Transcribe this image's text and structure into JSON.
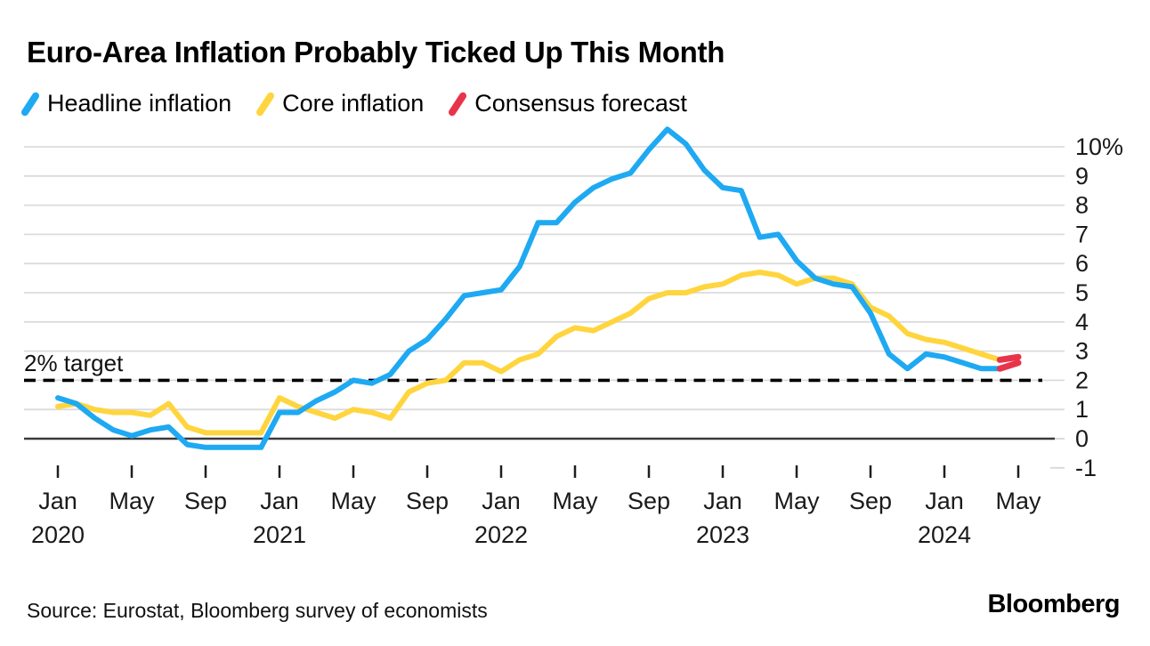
{
  "title": "Euro-Area Inflation Probably Ticked Up This Month",
  "legend": [
    {
      "label": "Headline inflation",
      "color": "#1EA9F2"
    },
    {
      "label": "Core inflation",
      "color": "#FFD53F"
    },
    {
      "label": "Consensus forecast",
      "color": "#E9334B"
    }
  ],
  "annotation": {
    "label": "2% target",
    "value": 2
  },
  "source": "Source: Eurostat, Bloomberg survey of economists",
  "brand": "Bloomberg",
  "colors": {
    "headline": "#1EA9F2",
    "core": "#FFD53F",
    "forecast": "#E9334B",
    "gridline": "#DBDBDB",
    "zero_line": "#3A3A3A",
    "target_dash": "#000000",
    "tick": "#1F1F1F"
  },
  "chart_data": {
    "type": "line",
    "unit": "percent, year-over-year",
    "x_start": "Jan 2020",
    "x_end": "May 2024",
    "months_per_point": 1,
    "ylim": [
      -1,
      10
    ],
    "grid": "horizontal",
    "legend_position": "top",
    "y_ticks": [
      {
        "value": 10,
        "label": "10%"
      },
      {
        "value": 9,
        "label": "9"
      },
      {
        "value": 8,
        "label": "8"
      },
      {
        "value": 7,
        "label": "7"
      },
      {
        "value": 6,
        "label": "6"
      },
      {
        "value": 5,
        "label": "5"
      },
      {
        "value": 4,
        "label": "4"
      },
      {
        "value": 3,
        "label": "3"
      },
      {
        "value": 2,
        "label": "2"
      },
      {
        "value": 1,
        "label": "1"
      },
      {
        "value": 0,
        "label": "0"
      },
      {
        "value": -1,
        "label": "-1"
      }
    ],
    "x_ticks": [
      {
        "month": "Jan",
        "year": "2020"
      },
      {
        "month": "May"
      },
      {
        "month": "Sep"
      },
      {
        "month": "Jan",
        "year": "2021"
      },
      {
        "month": "May"
      },
      {
        "month": "Sep"
      },
      {
        "month": "Jan",
        "year": "2022"
      },
      {
        "month": "May"
      },
      {
        "month": "Sep"
      },
      {
        "month": "Jan",
        "year": "2023"
      },
      {
        "month": "May"
      },
      {
        "month": "Sep"
      },
      {
        "month": "Jan",
        "year": "2024"
      },
      {
        "month": "May"
      }
    ],
    "series": [
      {
        "name": "Headline inflation",
        "color": "#1EA9F2",
        "values": [
          1.4,
          1.2,
          0.7,
          0.3,
          0.1,
          0.3,
          0.4,
          -0.2,
          -0.3,
          -0.3,
          -0.3,
          -0.3,
          0.9,
          0.9,
          1.3,
          1.6,
          2.0,
          1.9,
          2.2,
          3.0,
          3.4,
          4.1,
          4.9,
          5.0,
          5.1,
          5.9,
          7.4,
          7.4,
          8.1,
          8.6,
          8.9,
          9.1,
          9.9,
          10.6,
          10.1,
          9.2,
          8.6,
          8.5,
          6.9,
          7.0,
          6.1,
          5.5,
          5.3,
          5.2,
          4.3,
          2.9,
          2.4,
          2.9,
          2.8,
          2.6,
          2.4,
          2.4
        ]
      },
      {
        "name": "Core inflation",
        "color": "#FFD53F",
        "values": [
          1.1,
          1.2,
          1.0,
          0.9,
          0.9,
          0.8,
          1.2,
          0.4,
          0.2,
          0.2,
          0.2,
          0.2,
          1.4,
          1.1,
          0.9,
          0.7,
          1.0,
          0.9,
          0.7,
          1.6,
          1.9,
          2.0,
          2.6,
          2.6,
          2.3,
          2.7,
          2.9,
          3.5,
          3.8,
          3.7,
          4.0,
          4.3,
          4.8,
          5.0,
          5.0,
          5.2,
          5.3,
          5.6,
          5.7,
          5.6,
          5.3,
          5.5,
          5.5,
          5.3,
          4.5,
          4.2,
          3.6,
          3.4,
          3.3,
          3.1,
          2.9,
          2.7
        ]
      }
    ],
    "forecast": {
      "name": "Consensus forecast",
      "color": "#E9334B",
      "month": "May 2024",
      "headline": [
        2.4,
        2.6
      ],
      "core": [
        2.7,
        2.8
      ]
    }
  }
}
